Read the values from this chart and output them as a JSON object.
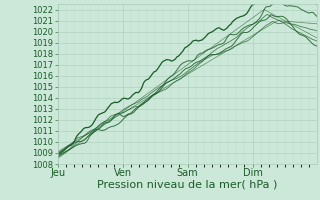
{
  "title": "",
  "xlabel": "Pression niveau de la mer( hPa )",
  "bg_color": "#cce8d8",
  "plot_bg_color": "#cce8d8",
  "grid_major_color": "#aacab8",
  "grid_minor_color": "#bbdacc",
  "line_color": "#1a5c28",
  "ylim": [
    1008,
    1022.5
  ],
  "yticks": [
    1008,
    1009,
    1010,
    1011,
    1012,
    1013,
    1014,
    1015,
    1016,
    1017,
    1018,
    1019,
    1020,
    1021,
    1022
  ],
  "xtick_labels": [
    "Jeu",
    "Ven",
    "Sam",
    "Dim"
  ],
  "xtick_positions": [
    0,
    96,
    192,
    288
  ],
  "total_points": 384,
  "xlabel_fontsize": 8,
  "ytick_fontsize": 6,
  "xtick_fontsize": 7
}
